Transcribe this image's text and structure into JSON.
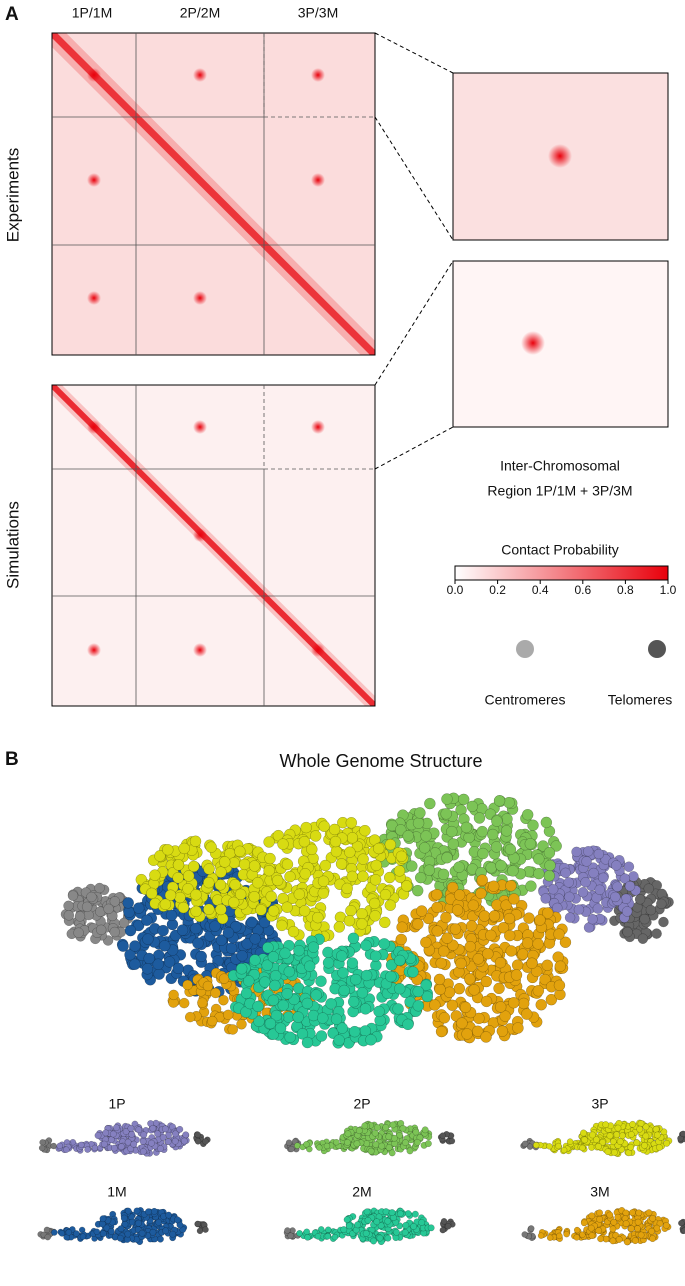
{
  "panel_a": {
    "label": "A",
    "column_labels": [
      "1P/1M",
      "2P/2M",
      "3P/3M"
    ],
    "row_labels": [
      "Experiments",
      "Simulations"
    ],
    "zoom_caption": [
      "Inter-Chromosomal",
      "Region 1P/1M + 3P/3M"
    ],
    "colorbar": {
      "title": "Contact Probability",
      "ticks": [
        "0.0",
        "0.2",
        "0.4",
        "0.6",
        "0.8",
        "1.0"
      ]
    },
    "legend": [
      "Centromeres",
      "Telomeres"
    ]
  },
  "panel_b": {
    "label": "B",
    "title": "Whole Genome Structure",
    "chromosomes": [
      "1P",
      "2P",
      "3P",
      "1M",
      "2M",
      "3M"
    ]
  }
}
